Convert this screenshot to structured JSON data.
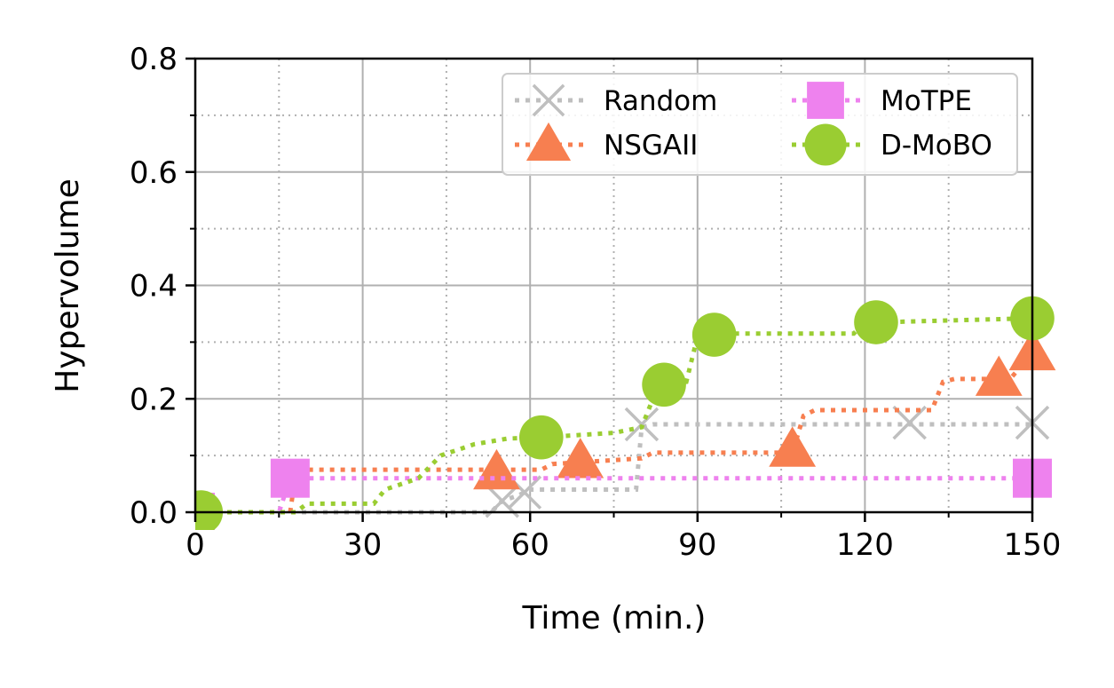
{
  "chart_data": {
    "type": "line",
    "title": "",
    "xlabel": "Time (min.)",
    "ylabel": "Hypervolume",
    "xlim": [
      0,
      150
    ],
    "ylim": [
      0,
      0.8
    ],
    "xticks": [
      0,
      30,
      60,
      90,
      120,
      150
    ],
    "xtick_labels": [
      "0",
      "30",
      "60",
      "90",
      "120",
      "150"
    ],
    "yticks": [
      0,
      0.2,
      0.4,
      0.6,
      0.8
    ],
    "ytick_labels": [
      "0.0",
      "0.2",
      "0.4",
      "0.6",
      "0.8"
    ],
    "grid": "major solid, minor dotted",
    "legend_position": "top-right",
    "series": [
      {
        "name": "Random",
        "color": "#bfbfbf",
        "marker": "x",
        "line": [
          [
            0,
            0
          ],
          [
            53,
            0
          ],
          [
            55,
            0.02
          ],
          [
            58,
            0.03
          ],
          [
            60,
            0.04
          ],
          [
            79,
            0.04
          ],
          [
            80,
            0.15
          ],
          [
            82,
            0.155
          ],
          [
            150,
            0.155
          ]
        ],
        "markers": [
          [
            55,
            0.02
          ],
          [
            59,
            0.035
          ],
          [
            80,
            0.155
          ],
          [
            128,
            0.158
          ],
          [
            150,
            0.158
          ]
        ]
      },
      {
        "name": "NSGAII",
        "color": "#f77f50",
        "marker": "triangle",
        "line": [
          [
            17,
            0
          ],
          [
            18,
            0.07
          ],
          [
            20,
            0.075
          ],
          [
            62,
            0.075
          ],
          [
            64,
            0.085
          ],
          [
            80,
            0.095
          ],
          [
            82,
            0.105
          ],
          [
            107,
            0.105
          ],
          [
            109,
            0.17
          ],
          [
            111,
            0.18
          ],
          [
            132,
            0.18
          ],
          [
            134,
            0.23
          ],
          [
            136,
            0.235
          ],
          [
            146,
            0.235
          ],
          [
            150,
            0.28
          ]
        ],
        "markers": [
          [
            54,
            0.07
          ],
          [
            69,
            0.09
          ],
          [
            107,
            0.11
          ],
          [
            144,
            0.235
          ],
          [
            150,
            0.28
          ]
        ]
      },
      {
        "name": "MoTPE",
        "color": "#ee82ee",
        "marker": "square",
        "line": [
          [
            0,
            0
          ],
          [
            15,
            0
          ],
          [
            17,
            0.06
          ],
          [
            150,
            0.06
          ]
        ],
        "markers": [
          [
            0,
            0
          ],
          [
            17,
            0.06
          ],
          [
            150,
            0.06
          ]
        ]
      },
      {
        "name": "D-MoBO",
        "color": "#9acd32",
        "marker": "circle",
        "line": [
          [
            0,
            0
          ],
          [
            18,
            0
          ],
          [
            20,
            0.015
          ],
          [
            32,
            0.015
          ],
          [
            34,
            0.04
          ],
          [
            40,
            0.06
          ],
          [
            44,
            0.1
          ],
          [
            50,
            0.12
          ],
          [
            56,
            0.13
          ],
          [
            62,
            0.132
          ],
          [
            75,
            0.14
          ],
          [
            80,
            0.15
          ],
          [
            83,
            0.225
          ],
          [
            88,
            0.23
          ],
          [
            90,
            0.31
          ],
          [
            93,
            0.315
          ],
          [
            118,
            0.315
          ],
          [
            120,
            0.335
          ],
          [
            123,
            0.335
          ],
          [
            150,
            0.342
          ]
        ],
        "markers": [
          [
            1,
            0
          ],
          [
            62,
            0.132
          ],
          [
            84,
            0.225
          ],
          [
            93,
            0.313
          ],
          [
            122,
            0.335
          ],
          [
            150,
            0.342
          ]
        ]
      }
    ]
  }
}
